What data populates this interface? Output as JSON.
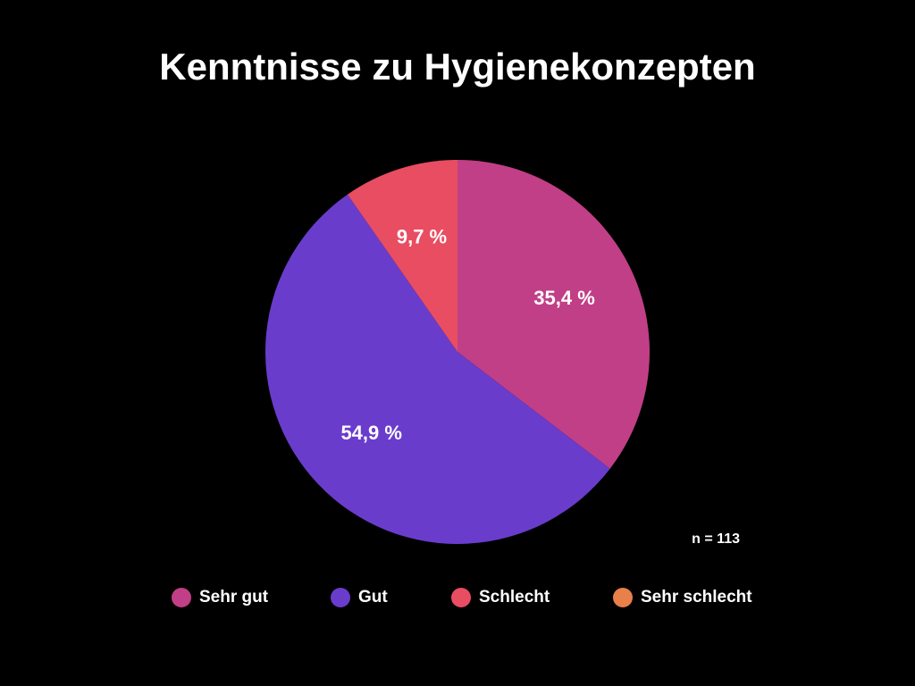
{
  "chart_data": {
    "type": "pie",
    "title": "Kenntnisse zu Hygienekonzepten",
    "categories": [
      "Sehr gut",
      "Gut",
      "Schlecht",
      "Sehr schlecht"
    ],
    "values": [
      35.4,
      54.9,
      9.7,
      0
    ],
    "value_labels": [
      "35,4 %",
      "54,9 %",
      "9,7 %",
      null
    ],
    "colors": [
      "#c13f86",
      "#6a3ccc",
      "#e84d62",
      "#e8804a"
    ],
    "annotation": "n = 113"
  }
}
